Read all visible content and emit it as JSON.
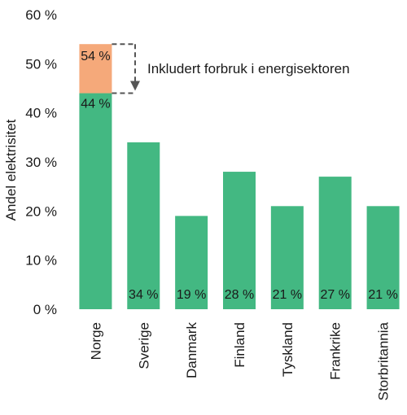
{
  "chart_data": {
    "type": "bar",
    "title": "",
    "xlabel": "",
    "ylabel": "Andel elektrisitet",
    "ylim": [
      0,
      60
    ],
    "yticks": [
      0,
      10,
      20,
      30,
      40,
      50,
      60
    ],
    "ytick_suffix": " %",
    "grid": false,
    "legend": "none",
    "categories": [
      "Norge",
      "Sverige",
      "Danmark",
      "Finland",
      "Tyskland",
      "Frankrike",
      "Storbritannia"
    ],
    "series": [
      {
        "values": [
          44,
          34,
          19,
          28,
          21,
          27,
          21
        ],
        "color": "#43b882"
      },
      {
        "values": [
          10,
          null,
          null,
          null,
          null,
          null,
          null
        ],
        "color": "#f5a97a"
      }
    ],
    "data_labels": [
      "44 %",
      "34 %",
      "19 %",
      "28 %",
      "21 %",
      "27 %",
      "21 %"
    ],
    "stacked_total_label": "54 %",
    "annotation": "Inkludert forbruk i energisektoren"
  }
}
